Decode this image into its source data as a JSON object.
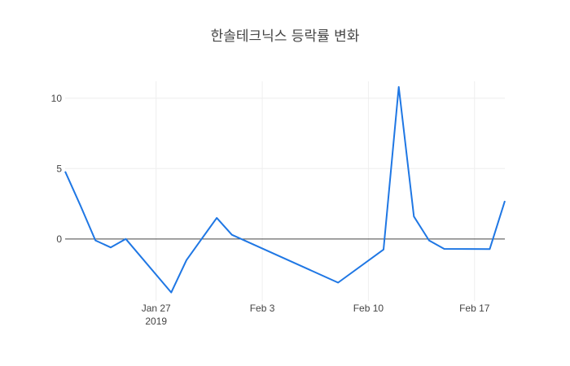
{
  "chart_data": {
    "type": "line",
    "title": "한솔테크닉스 등락률 변화",
    "xlabel": "",
    "ylabel": "",
    "x_range": [
      "2019-01-21",
      "2019-02-19"
    ],
    "ylim": [
      -4.4,
      11.2
    ],
    "grid": true,
    "zero_line": true,
    "line_color": "#1f77e4",
    "x_ticks": [
      {
        "date": "2019-01-27",
        "label": "Jan 27",
        "sublabel": "2019"
      },
      {
        "date": "2019-02-03",
        "label": "Feb 3",
        "sublabel": ""
      },
      {
        "date": "2019-02-10",
        "label": "Feb 10",
        "sublabel": ""
      },
      {
        "date": "2019-02-17",
        "label": "Feb 17",
        "sublabel": ""
      }
    ],
    "y_ticks": [
      {
        "value": 0,
        "label": "0"
      },
      {
        "value": 5,
        "label": "5"
      },
      {
        "value": 10,
        "label": "10"
      }
    ],
    "series": [
      {
        "x": [
          "2019-01-21",
          "2019-01-22",
          "2019-01-23",
          "2019-01-24",
          "2019-01-25",
          "2019-01-28",
          "2019-01-29",
          "2019-01-30",
          "2019-01-31",
          "2019-02-01",
          "2019-02-08",
          "2019-02-11",
          "2019-02-12",
          "2019-02-13",
          "2019-02-14",
          "2019-02-15",
          "2019-02-18",
          "2019-02-19"
        ],
        "y": [
          4.8,
          2.4,
          -0.1,
          -0.6,
          0.0,
          -3.8,
          -1.5,
          0.0,
          1.5,
          0.3,
          -3.1,
          -0.75,
          10.8,
          1.6,
          -0.1,
          -0.7,
          -0.72,
          2.7
        ]
      }
    ]
  }
}
